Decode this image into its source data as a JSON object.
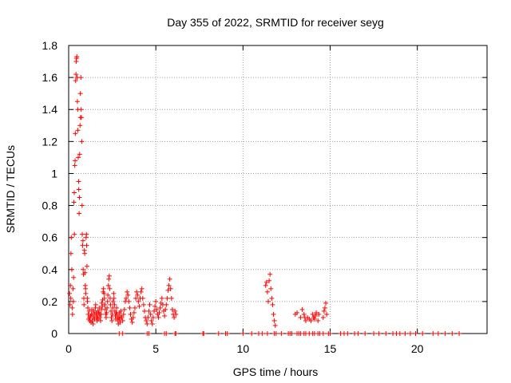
{
  "chart_data": {
    "type": "scatter",
    "title": "Day 355 of 2022, SRMTID for receiver seyg",
    "xlabel": "GPS time / hours",
    "ylabel": "SRMTID / TECUs",
    "xlim": [
      0,
      24
    ],
    "ylim": [
      0,
      1.8
    ],
    "x_ticks": [
      0,
      5,
      10,
      15,
      20
    ],
    "x_tick_labels": [
      "0",
      "5",
      "10",
      "15",
      "20"
    ],
    "y_ticks": [
      0,
      0.2,
      0.4,
      0.6,
      0.8,
      1.0,
      1.2,
      1.4,
      1.6,
      1.8
    ],
    "y_tick_labels": [
      "0",
      "0.2",
      "0.4",
      "0.6",
      "0.8",
      "1",
      "1.2",
      "1.4",
      "1.6",
      "1.8"
    ],
    "grid": true,
    "marker": "plus",
    "color": "#ff0000",
    "series": [
      {
        "name": "SRMTID",
        "points": [
          [
            0.05,
            0.25
          ],
          [
            0.08,
            0.18
          ],
          [
            0.1,
            0.3
          ],
          [
            0.12,
            0.22
          ],
          [
            0.13,
            0.5
          ],
          [
            0.15,
            0.6
          ],
          [
            0.18,
            0.4
          ],
          [
            0.2,
            0.16
          ],
          [
            0.22,
            0.12
          ],
          [
            0.25,
            0.28
          ],
          [
            0.27,
            0.2
          ],
          [
            0.28,
            0.35
          ],
          [
            0.3,
            0.82
          ],
          [
            0.32,
            0.88
          ],
          [
            0.33,
            0.62
          ],
          [
            0.35,
            1.05
          ],
          [
            0.37,
            1.08
          ],
          [
            0.38,
            1.25
          ],
          [
            0.4,
            1.58
          ],
          [
            0.42,
            1.62
          ],
          [
            0.43,
            1.7
          ],
          [
            0.45,
            1.72
          ],
          [
            0.47,
            1.73
          ],
          [
            0.48,
            1.6
          ],
          [
            0.5,
            1.45
          ],
          [
            0.52,
            1.4
          ],
          [
            0.53,
            1.27
          ],
          [
            0.55,
            1.1
          ],
          [
            0.57,
            0.95
          ],
          [
            0.58,
            0.9
          ],
          [
            0.6,
            0.75
          ],
          [
            0.62,
            0.85
          ],
          [
            0.63,
            1.12
          ],
          [
            0.65,
            1.3
          ],
          [
            0.67,
            1.5
          ],
          [
            0.68,
            1.35
          ],
          [
            0.7,
            1.6
          ],
          [
            0.72,
            1.4
          ],
          [
            0.73,
            1.35
          ],
          [
            0.75,
            1.2
          ],
          [
            0.77,
            0.8
          ],
          [
            0.78,
            0.62
          ],
          [
            0.8,
            0.55
          ],
          [
            0.82,
            0.58
          ],
          [
            0.83,
            0.4
          ],
          [
            0.85,
            0.37
          ],
          [
            0.87,
            0.22
          ],
          [
            0.88,
            0.18
          ],
          [
            0.9,
            0.52
          ],
          [
            0.92,
            0.5
          ],
          [
            0.93,
            0.38
          ],
          [
            0.95,
            0.3
          ],
          [
            0.97,
            0.28
          ],
          [
            0.98,
            0.25
          ],
          [
            1.0,
            0.6
          ],
          [
            1.02,
            0.62
          ],
          [
            1.03,
            0.55
          ],
          [
            1.05,
            0.42
          ],
          [
            1.07,
            0.22
          ],
          [
            1.08,
            0.2
          ],
          [
            1.1,
            0.16
          ],
          [
            1.12,
            0.12
          ],
          [
            1.15,
            0.09
          ],
          [
            1.18,
            0.14
          ],
          [
            1.2,
            0.1
          ],
          [
            1.22,
            0.08
          ],
          [
            1.25,
            0.11
          ],
          [
            1.28,
            0.07
          ],
          [
            1.3,
            0.12
          ],
          [
            1.33,
            0.15
          ],
          [
            1.35,
            0.08
          ],
          [
            1.38,
            0.12
          ],
          [
            1.4,
            0.06
          ],
          [
            1.43,
            0.1
          ],
          [
            1.45,
            0.14
          ],
          [
            1.48,
            0.09
          ],
          [
            1.5,
            0.12
          ],
          [
            1.53,
            0.16
          ],
          [
            1.55,
            0.18
          ],
          [
            1.58,
            0.13
          ],
          [
            1.6,
            0.1
          ],
          [
            1.63,
            0.08
          ],
          [
            1.65,
            0.11
          ],
          [
            1.68,
            0.14
          ],
          [
            1.7,
            0.09
          ],
          [
            1.73,
            0.13
          ],
          [
            1.75,
            0.16
          ],
          [
            1.78,
            0.12
          ],
          [
            1.8,
            0.1
          ],
          [
            1.83,
            0.08
          ],
          [
            1.85,
            0.12
          ],
          [
            1.88,
            0.15
          ],
          [
            1.9,
            0.19
          ],
          [
            1.93,
            0.17
          ],
          [
            1.95,
            0.21
          ],
          [
            1.98,
            0.26
          ],
          [
            2.0,
            0.28
          ],
          [
            2.03,
            0.25
          ],
          [
            2.05,
            0.22
          ],
          [
            2.08,
            0.18
          ],
          [
            2.1,
            0.15
          ],
          [
            2.13,
            0.12
          ],
          [
            2.15,
            0.1
          ],
          [
            2.18,
            0.13
          ],
          [
            2.2,
            0.16
          ],
          [
            2.23,
            0.2
          ],
          [
            2.25,
            0.24
          ],
          [
            2.28,
            0.3
          ],
          [
            2.3,
            0.34
          ],
          [
            2.33,
            0.36
          ],
          [
            2.35,
            0.28
          ],
          [
            2.38,
            0.22
          ],
          [
            2.4,
            0.18
          ],
          [
            2.43,
            0.14
          ],
          [
            2.45,
            0.1
          ],
          [
            2.48,
            0.08
          ],
          [
            2.5,
            0.12
          ],
          [
            2.53,
            0.16
          ],
          [
            2.55,
            0.2
          ],
          [
            2.58,
            0.25
          ],
          [
            2.6,
            0.22
          ],
          [
            2.63,
            0.18
          ],
          [
            2.65,
            0.14
          ],
          [
            2.68,
            0.11
          ],
          [
            2.7,
            0.09
          ],
          [
            2.73,
            0.13
          ],
          [
            2.75,
            0.16
          ],
          [
            2.78,
            0.12
          ],
          [
            2.8,
            0.1
          ],
          [
            2.83,
            0.08
          ],
          [
            2.85,
            0.06
          ],
          [
            2.88,
            0.1
          ],
          [
            2.9,
            0.13
          ],
          [
            2.93,
            0.09
          ],
          [
            2.95,
            0.07
          ],
          [
            2.98,
            0.11
          ],
          [
            3.0,
            0.14
          ],
          [
            3.05,
            0.1
          ],
          [
            3.1,
            0.08
          ],
          [
            3.15,
            0.12
          ],
          [
            3.2,
            0.15
          ],
          [
            3.25,
            0.2
          ],
          [
            3.3,
            0.22
          ],
          [
            3.35,
            0.26
          ],
          [
            3.4,
            0.24
          ],
          [
            3.45,
            0.2
          ],
          [
            3.5,
            0.16
          ],
          [
            3.55,
            0.12
          ],
          [
            3.6,
            0.09
          ],
          [
            3.65,
            0.07
          ],
          [
            3.7,
            0.1
          ],
          [
            3.75,
            0.13
          ],
          [
            3.8,
            0.16
          ],
          [
            3.85,
            0.22
          ],
          [
            3.9,
            0.26
          ],
          [
            3.95,
            0.24
          ],
          [
            4.0,
            0.2
          ],
          [
            4.05,
            0.17
          ],
          [
            4.1,
            0.22
          ],
          [
            4.15,
            0.26
          ],
          [
            4.2,
            0.28
          ],
          [
            4.25,
            0.22
          ],
          [
            4.3,
            0.18
          ],
          [
            4.35,
            0.14
          ],
          [
            4.4,
            0.1
          ],
          [
            4.45,
            0.08
          ],
          [
            4.5,
            0.06
          ],
          [
            4.55,
            0.1
          ],
          [
            4.6,
            0.14
          ],
          [
            4.65,
            0.18
          ],
          [
            4.7,
            0.12
          ],
          [
            4.75,
            0.08
          ],
          [
            4.8,
            0.06
          ],
          [
            4.85,
            0.1
          ],
          [
            4.9,
            0.14
          ],
          [
            4.95,
            0.17
          ],
          [
            5.0,
            0.2
          ],
          [
            5.05,
            0.15
          ],
          [
            5.1,
            0.12
          ],
          [
            5.15,
            0.1
          ],
          [
            5.2,
            0.13
          ],
          [
            5.25,
            0.16
          ],
          [
            5.3,
            0.19
          ],
          [
            5.35,
            0.22
          ],
          [
            5.4,
            0.18
          ],
          [
            5.45,
            0.14
          ],
          [
            5.5,
            0.11
          ],
          [
            5.55,
            0.15
          ],
          [
            5.6,
            0.18
          ],
          [
            5.65,
            0.22
          ],
          [
            5.7,
            0.27
          ],
          [
            5.75,
            0.3
          ],
          [
            5.8,
            0.34
          ],
          [
            5.85,
            0.28
          ],
          [
            5.9,
            0.22
          ],
          [
            5.95,
            0.15
          ],
          [
            6.0,
            0.12
          ],
          [
            6.05,
            0.1
          ],
          [
            6.1,
            0.14
          ],
          [
            6.15,
            0.12
          ],
          [
            11.3,
            0.3
          ],
          [
            11.35,
            0.32
          ],
          [
            11.4,
            0.26
          ],
          [
            11.45,
            0.2
          ],
          [
            11.5,
            0.33
          ],
          [
            11.55,
            0.37
          ],
          [
            11.6,
            0.28
          ],
          [
            11.65,
            0.22
          ],
          [
            11.7,
            0.18
          ],
          [
            11.75,
            0.12
          ],
          [
            11.8,
            0.08
          ],
          [
            11.85,
            0.05
          ],
          [
            13.0,
            0.12
          ],
          [
            13.1,
            0.13
          ],
          [
            13.3,
            0.1
          ],
          [
            13.4,
            0.15
          ],
          [
            13.5,
            0.12
          ],
          [
            13.55,
            0.1
          ],
          [
            13.6,
            0.08
          ],
          [
            13.7,
            0.1
          ],
          [
            13.8,
            0.09
          ],
          [
            13.9,
            0.08
          ],
          [
            14.0,
            0.12
          ],
          [
            14.05,
            0.1
          ],
          [
            14.1,
            0.09
          ],
          [
            14.15,
            0.11
          ],
          [
            14.2,
            0.13
          ],
          [
            14.3,
            0.08
          ],
          [
            14.35,
            0.12
          ],
          [
            14.6,
            0.1
          ],
          [
            14.65,
            0.14
          ],
          [
            14.7,
            0.16
          ],
          [
            14.75,
            0.19
          ],
          [
            14.8,
            0.12
          ],
          [
            2.9,
            0.0
          ],
          [
            3.1,
            0.0
          ],
          [
            4.5,
            0.0
          ],
          [
            4.6,
            0.0
          ],
          [
            5.5,
            0.0
          ],
          [
            5.6,
            0.0
          ],
          [
            6.1,
            0.0
          ],
          [
            6.15,
            0.0
          ],
          [
            7.7,
            0.0
          ],
          [
            7.75,
            0.0
          ],
          [
            8.6,
            0.0
          ],
          [
            9.0,
            0.0
          ],
          [
            9.1,
            0.0
          ],
          [
            10.0,
            0.0
          ],
          [
            10.5,
            0.0
          ],
          [
            10.9,
            0.0
          ],
          [
            11.1,
            0.0
          ],
          [
            11.4,
            0.0
          ],
          [
            11.8,
            0.0
          ],
          [
            11.9,
            0.0
          ],
          [
            12.2,
            0.0
          ],
          [
            12.6,
            0.0
          ],
          [
            12.7,
            0.0
          ],
          [
            12.8,
            0.0
          ],
          [
            13.1,
            0.0
          ],
          [
            13.2,
            0.0
          ],
          [
            13.3,
            0.0
          ],
          [
            13.5,
            0.0
          ],
          [
            13.6,
            0.0
          ],
          [
            13.8,
            0.0
          ],
          [
            14.0,
            0.0
          ],
          [
            14.1,
            0.0
          ],
          [
            14.3,
            0.0
          ],
          [
            14.4,
            0.0
          ],
          [
            14.6,
            0.0
          ],
          [
            14.9,
            0.0
          ],
          [
            15.0,
            0.0
          ],
          [
            15.6,
            0.0
          ],
          [
            15.8,
            0.0
          ],
          [
            16.0,
            0.0
          ],
          [
            16.4,
            0.0
          ],
          [
            16.6,
            0.0
          ],
          [
            17.0,
            0.0
          ],
          [
            17.5,
            0.0
          ],
          [
            17.8,
            0.0
          ],
          [
            18.2,
            0.0
          ],
          [
            18.6,
            0.0
          ],
          [
            18.8,
            0.0
          ],
          [
            19.0,
            0.0
          ],
          [
            19.3,
            0.0
          ],
          [
            19.6,
            0.0
          ],
          [
            19.9,
            0.0
          ],
          [
            20.3,
            0.0
          ],
          [
            20.9,
            0.0
          ],
          [
            21.2,
            0.0
          ],
          [
            21.6,
            0.0
          ],
          [
            22.0,
            0.0
          ],
          [
            22.4,
            0.0
          ]
        ]
      }
    ]
  }
}
